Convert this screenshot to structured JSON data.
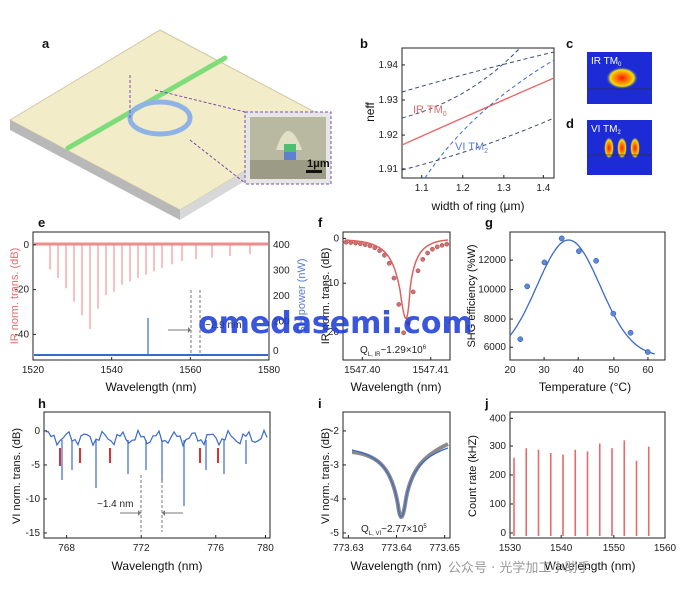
{
  "panels": {
    "a": {
      "label": "a",
      "scale_bar": "1μm"
    },
    "b": {
      "label": "b",
      "ylabel": "neff",
      "xlabel": "width of ring (μm)",
      "yticks": [
        "1.94",
        "1.93",
        "1.92",
        "1.91"
      ],
      "xticks": [
        "1.1",
        "1.2",
        "1.3",
        "1.4"
      ],
      "curve_ir": "IR TM",
      "curve_ir_sub": "0",
      "curve_vi": "VI TM",
      "curve_vi_sub": "2"
    },
    "c": {
      "label": "c",
      "mode": "IR TM",
      "mode_sub": "0"
    },
    "d": {
      "label": "d",
      "mode": "VI TM",
      "mode_sub": "2"
    },
    "e": {
      "label": "e",
      "ylabel_left": "IR norm. trans. (dB)",
      "ylabel_right": "SH power (nW)",
      "xlabel": "Wavelength (nm)",
      "yticks_left": [
        "0",
        "-20",
        "-40"
      ],
      "yticks_right": [
        "400",
        "300",
        "200",
        "100",
        "0"
      ],
      "xticks": [
        "1520",
        "1540",
        "1560",
        "1580"
      ],
      "annotation": "~2.9 nm"
    },
    "f": {
      "label": "f",
      "ylabel": "IR norm. trans. (dB)",
      "xlabel": "Wavelength (nm)",
      "yticks": [
        "0",
        "-10",
        "-20"
      ],
      "xticks": [
        "1547.40",
        "1547.41"
      ],
      "q": "Q",
      "q_sub": "L, IR",
      "q_val": "~1.29×10",
      "q_exp": "6"
    },
    "g": {
      "label": "g",
      "ylabel": "SHG efficiency (%W)",
      "xlabel": "Temperature (°C)",
      "yticks": [
        "12000",
        "10000",
        "8000",
        "6000"
      ],
      "xticks": [
        "20",
        "30",
        "40",
        "50",
        "60"
      ]
    },
    "h": {
      "label": "h",
      "ylabel": "VI norm. trans. (dB)",
      "xlabel": "Wavelength (nm)",
      "yticks": [
        "0",
        "-5",
        "-10",
        "-15"
      ],
      "xticks": [
        "768",
        "772",
        "776",
        "780"
      ],
      "annotation": "~1.4 nm"
    },
    "i": {
      "label": "i",
      "ylabel": "VI norm. trans. (dB)",
      "xlabel": "Wavelength (nm)",
      "yticks": [
        "-2",
        "-3",
        "-4",
        "-5"
      ],
      "xticks": [
        "773.63",
        "773.64",
        "773.65"
      ],
      "q": "Q",
      "q_sub": "L, VI",
      "q_val": "~2.77×10",
      "q_exp": "5"
    },
    "j": {
      "label": "j",
      "ylabel": "Count rate (kHZ)",
      "xlabel": "Wavelength (nm)",
      "yticks": [
        "400",
        "300",
        "200",
        "100",
        "0"
      ],
      "xticks": [
        "1530",
        "1540",
        "1550",
        "1560"
      ]
    }
  },
  "watermark": "omedasemi.com",
  "wechat_mark": "公众号 · 光学加工小助手",
  "chart_data": [
    {
      "panel": "g",
      "type": "scatter",
      "title": "",
      "xlabel": "Temperature (°C)",
      "ylabel": "SHG efficiency (%W)",
      "x": [
        23,
        25,
        30,
        35,
        40,
        45,
        50,
        55,
        60
      ],
      "y": [
        6300,
        9600,
        11100,
        12600,
        11800,
        11200,
        7900,
        6700,
        5500
      ],
      "xlim": [
        20,
        65
      ],
      "ylim": [
        5000,
        13000
      ]
    },
    {
      "panel": "j",
      "type": "bar",
      "title": "",
      "xlabel": "Wavelength (nm)",
      "ylabel": "Count rate (kHZ)",
      "x": [
        1530,
        1532.5,
        1535,
        1537.5,
        1540,
        1542.5,
        1545,
        1547.5,
        1550,
        1552.5,
        1555,
        1557.5
      ],
      "values": [
        255,
        285,
        280,
        270,
        265,
        280,
        275,
        300,
        285,
        310,
        245,
        290
      ],
      "xlim": [
        1530,
        1560
      ],
      "ylim": [
        0,
        400
      ]
    }
  ]
}
